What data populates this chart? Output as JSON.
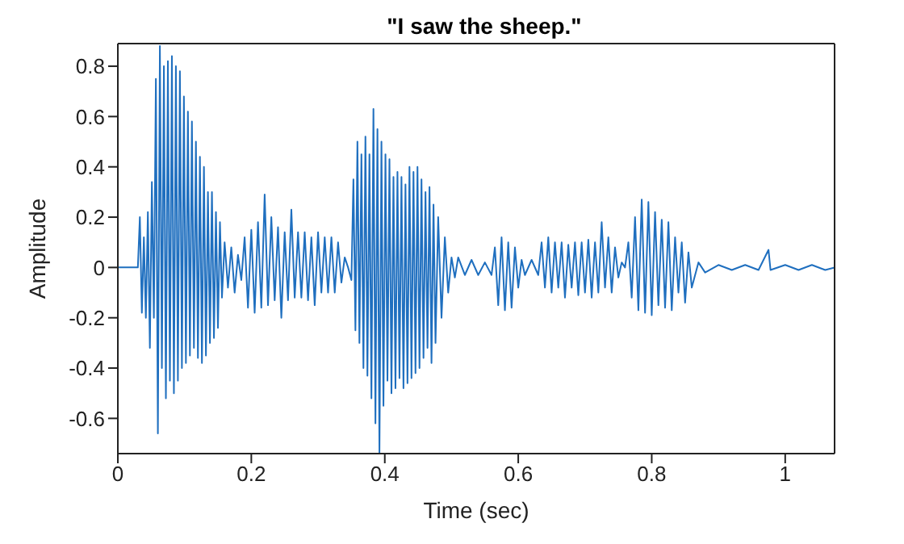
{
  "chart_data": {
    "type": "line",
    "title": "\"I saw the sheep.\"",
    "xlabel": "Time (sec)",
    "ylabel": "Amplitude",
    "xlim": [
      0,
      1.074
    ],
    "xticks": [
      0,
      0.2,
      0.4,
      0.6,
      0.8,
      1
    ],
    "ylim": [
      -0.74,
      0.89
    ],
    "yticks": [
      -0.6,
      -0.4,
      -0.2,
      0,
      0.2,
      0.4,
      0.6,
      0.8
    ],
    "legend": false,
    "marker": "none",
    "line_style": "solid",
    "series": [
      {
        "color": "#1f6fbf",
        "x": [
          0,
          0.03,
          0.033,
          0.036,
          0.039,
          0.042,
          0.045,
          0.048,
          0.051,
          0.054,
          0.057,
          0.06,
          0.063,
          0.066,
          0.069,
          0.072,
          0.075,
          0.078,
          0.081,
          0.084,
          0.087,
          0.09,
          0.093,
          0.096,
          0.099,
          0.102,
          0.105,
          0.108,
          0.111,
          0.114,
          0.117,
          0.12,
          0.123,
          0.126,
          0.129,
          0.132,
          0.135,
          0.138,
          0.141,
          0.144,
          0.147,
          0.15,
          0.153,
          0.156,
          0.16,
          0.165,
          0.17,
          0.175,
          0.18,
          0.185,
          0.19,
          0.195,
          0.2,
          0.205,
          0.21,
          0.215,
          0.22,
          0.225,
          0.23,
          0.235,
          0.24,
          0.245,
          0.25,
          0.255,
          0.26,
          0.265,
          0.27,
          0.275,
          0.28,
          0.285,
          0.29,
          0.295,
          0.3,
          0.305,
          0.31,
          0.315,
          0.32,
          0.325,
          0.33,
          0.335,
          0.34,
          0.345,
          0.35,
          0.353,
          0.356,
          0.359,
          0.362,
          0.365,
          0.368,
          0.371,
          0.374,
          0.377,
          0.38,
          0.383,
          0.386,
          0.389,
          0.392,
          0.395,
          0.398,
          0.401,
          0.404,
          0.407,
          0.41,
          0.413,
          0.416,
          0.419,
          0.422,
          0.425,
          0.428,
          0.431,
          0.434,
          0.437,
          0.44,
          0.443,
          0.446,
          0.449,
          0.452,
          0.455,
          0.458,
          0.461,
          0.464,
          0.467,
          0.47,
          0.473,
          0.476,
          0.48,
          0.485,
          0.49,
          0.495,
          0.5,
          0.505,
          0.51,
          0.52,
          0.53,
          0.54,
          0.55,
          0.56,
          0.565,
          0.57,
          0.575,
          0.58,
          0.585,
          0.59,
          0.595,
          0.6,
          0.605,
          0.61,
          0.62,
          0.63,
          0.635,
          0.64,
          0.645,
          0.65,
          0.655,
          0.66,
          0.665,
          0.67,
          0.675,
          0.68,
          0.685,
          0.69,
          0.695,
          0.7,
          0.705,
          0.71,
          0.715,
          0.72,
          0.725,
          0.73,
          0.735,
          0.74,
          0.745,
          0.75,
          0.755,
          0.76,
          0.765,
          0.77,
          0.775,
          0.78,
          0.785,
          0.79,
          0.795,
          0.8,
          0.805,
          0.81,
          0.815,
          0.82,
          0.825,
          0.83,
          0.835,
          0.84,
          0.845,
          0.85,
          0.855,
          0.86,
          0.87,
          0.88,
          0.9,
          0.92,
          0.94,
          0.96,
          0.975,
          0.978,
          1,
          1.02,
          1.04,
          1.06,
          1.074
        ],
        "values": [
          0,
          0,
          0.2,
          -0.18,
          0.12,
          -0.2,
          0.22,
          -0.32,
          0.34,
          -0.2,
          0.75,
          -0.66,
          0.88,
          -0.4,
          0.8,
          -0.52,
          0.82,
          -0.45,
          0.84,
          -0.5,
          0.8,
          -0.45,
          0.78,
          -0.4,
          0.68,
          -0.38,
          0.62,
          -0.35,
          0.58,
          -0.32,
          0.5,
          -0.36,
          0.44,
          -0.38,
          0.4,
          -0.35,
          0.3,
          -0.3,
          0.3,
          -0.28,
          0.22,
          -0.24,
          0.18,
          -0.12,
          0.1,
          -0.08,
          0.08,
          -0.1,
          0.05,
          -0.05,
          0.12,
          -0.16,
          0.15,
          -0.18,
          0.18,
          -0.16,
          0.29,
          -0.15,
          0.2,
          -0.13,
          0.16,
          -0.2,
          0.14,
          -0.13,
          0.23,
          -0.12,
          0.14,
          -0.12,
          0.14,
          -0.13,
          0.12,
          -0.15,
          0.14,
          -0.1,
          0.12,
          -0.1,
          0.12,
          -0.1,
          0.1,
          -0.06,
          0.04,
          0,
          -0.05,
          0.35,
          -0.25,
          0.5,
          -0.3,
          0.45,
          -0.4,
          0.52,
          -0.43,
          0.45,
          -0.52,
          0.63,
          -0.62,
          0.55,
          -0.74,
          0.5,
          -0.55,
          0.45,
          -0.45,
          0.43,
          -0.5,
          0.36,
          -0.48,
          0.38,
          -0.44,
          0.36,
          -0.48,
          0.33,
          -0.46,
          0.4,
          -0.44,
          0.38,
          -0.42,
          0.4,
          -0.4,
          0.35,
          -0.36,
          0.3,
          -0.32,
          0.32,
          -0.38,
          0.25,
          -0.3,
          0.2,
          -0.2,
          0.12,
          -0.1,
          0.04,
          -0.04,
          0.04,
          -0.03,
          0.03,
          -0.03,
          0.02,
          -0.03,
          0.08,
          -0.15,
          0.12,
          -0.17,
          0.1,
          -0.16,
          0.08,
          -0.08,
          0.03,
          -0.03,
          0.03,
          -0.03,
          0.1,
          -0.08,
          0.12,
          -0.1,
          0.1,
          -0.08,
          0.1,
          -0.12,
          0.09,
          -0.08,
          0.1,
          -0.11,
          0.1,
          -0.1,
          0.11,
          -0.12,
          0.1,
          -0.1,
          0.18,
          -0.08,
          0.12,
          -0.1,
          0.08,
          -0.04,
          0.02,
          0,
          0.1,
          -0.12,
          0.2,
          -0.17,
          0.27,
          -0.18,
          0.26,
          -0.19,
          0.22,
          -0.15,
          0.19,
          -0.16,
          0.18,
          -0.17,
          0.12,
          -0.1,
          0.1,
          -0.14,
          0.06,
          -0.08,
          0.02,
          -0.02,
          0.01,
          -0.01,
          0.01,
          -0.01,
          0.07,
          -0.01,
          0.01,
          -0.01,
          0.01,
          -0.01,
          0
        ]
      }
    ]
  }
}
